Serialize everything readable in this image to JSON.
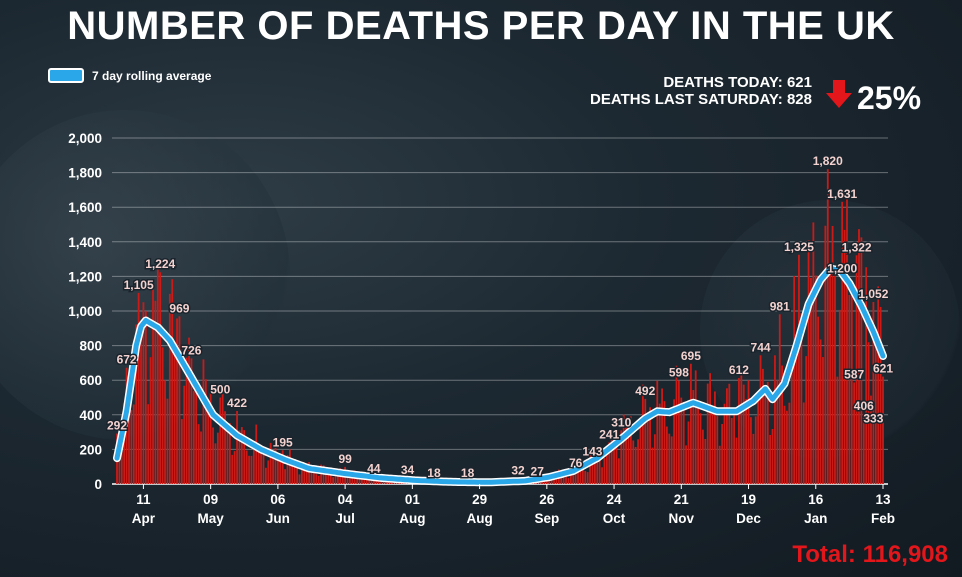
{
  "header": {
    "title": "NUMBER OF DEATHS PER DAY IN THE UK",
    "deaths_today": "DEATHS TODAY: 621",
    "deaths_last_saturday": "DEATHS LAST SATURDAY: 828",
    "change_pct": "25%",
    "change_direction": "down",
    "total": "Total: 116,908"
  },
  "legend": {
    "label": "7 day rolling average",
    "swatch_color": "#2aa7e8"
  },
  "colors": {
    "bars": "#cc1a16",
    "line": "#2aa7e8",
    "line_outline": "#ffffff",
    "total": "#e2161b",
    "arrow": "#e2161b"
  },
  "chart_data": {
    "type": "bar",
    "title": "NUMBER OF DEATHS PER DAY IN THE UK",
    "xlabel": "",
    "ylabel": "",
    "ylim": [
      0,
      2000
    ],
    "yticks": [
      0,
      200,
      400,
      600,
      800,
      1000,
      1200,
      1400,
      1600,
      1800,
      2000
    ],
    "ytick_labels": [
      "0",
      "200",
      "400",
      "600",
      "800",
      "1,000",
      "1,200",
      "1,400",
      "1,600",
      "1,800",
      "2,000"
    ],
    "grid": true,
    "legend_position": "top-left",
    "x_ticks": [
      {
        "day": 11,
        "label": "11",
        "month": "Apr"
      },
      {
        "day": 39,
        "label": "09",
        "month": "May"
      },
      {
        "day": 67,
        "label": "06",
        "month": "Jun"
      },
      {
        "day": 95,
        "label": "04",
        "month": "Jul"
      },
      {
        "day": 123,
        "label": "01",
        "month": "Aug"
      },
      {
        "day": 151,
        "label": "29",
        "month": "Aug"
      },
      {
        "day": 179,
        "label": "26",
        "month": "Sep"
      },
      {
        "day": 207,
        "label": "24",
        "month": "Oct"
      },
      {
        "day": 235,
        "label": "21",
        "month": "Nov"
      },
      {
        "day": 263,
        "label": "19",
        "month": "Dec"
      },
      {
        "day": 291,
        "label": "16",
        "month": "Jan"
      },
      {
        "day": 319,
        "label": "13",
        "month": "Feb"
      }
    ],
    "annotations": [
      {
        "day": 0,
        "value": 292,
        "label": "292"
      },
      {
        "day": 4,
        "value": 672,
        "label": "672"
      },
      {
        "day": 9,
        "value": 1105,
        "label": "1,105"
      },
      {
        "day": 18,
        "value": 1224,
        "label": "1,224"
      },
      {
        "day": 26,
        "value": 969,
        "label": "969"
      },
      {
        "day": 31,
        "value": 726,
        "label": "726"
      },
      {
        "day": 43,
        "value": 500,
        "label": "500"
      },
      {
        "day": 50,
        "value": 422,
        "label": "422"
      },
      {
        "day": 69,
        "value": 195,
        "label": "195"
      },
      {
        "day": 95,
        "value": 99,
        "label": "99"
      },
      {
        "day": 107,
        "value": 44,
        "label": "44"
      },
      {
        "day": 121,
        "value": 34,
        "label": "34"
      },
      {
        "day": 132,
        "value": 18,
        "label": "18"
      },
      {
        "day": 146,
        "value": 18,
        "label": "18"
      },
      {
        "day": 167,
        "value": 32,
        "label": "32"
      },
      {
        "day": 175,
        "value": 27,
        "label": "27"
      },
      {
        "day": 191,
        "value": 76,
        "label": "76"
      },
      {
        "day": 198,
        "value": 143,
        "label": "143"
      },
      {
        "day": 205,
        "value": 241,
        "label": "241"
      },
      {
        "day": 210,
        "value": 310,
        "label": "310"
      },
      {
        "day": 220,
        "value": 492,
        "label": "492"
      },
      {
        "day": 234,
        "value": 598,
        "label": "598"
      },
      {
        "day": 239,
        "value": 695,
        "label": "695"
      },
      {
        "day": 259,
        "value": 612,
        "label": "612"
      },
      {
        "day": 268,
        "value": 744,
        "label": "744"
      },
      {
        "day": 276,
        "value": 981,
        "label": "981"
      },
      {
        "day": 284,
        "value": 1325,
        "label": "1,325"
      },
      {
        "day": 296,
        "value": 1820,
        "label": "1,820"
      },
      {
        "day": 302,
        "value": 1631,
        "label": "1,631"
      },
      {
        "day": 302,
        "value": 1200,
        "label": "1,200"
      },
      {
        "day": 308,
        "value": 1322,
        "label": "1,322"
      },
      {
        "day": 307,
        "value": 587,
        "label": "587"
      },
      {
        "day": 311,
        "value": 406,
        "label": "406"
      },
      {
        "day": 315,
        "value": 1052,
        "label": "1,052"
      },
      {
        "day": 315,
        "value": 333,
        "label": "333"
      },
      {
        "day": 319,
        "value": 621,
        "label": "621"
      }
    ],
    "rolling_avg_keypoints": [
      {
        "day": 0,
        "value": 150
      },
      {
        "day": 4,
        "value": 420
      },
      {
        "day": 8,
        "value": 800
      },
      {
        "day": 10,
        "value": 910
      },
      {
        "day": 12,
        "value": 945
      },
      {
        "day": 17,
        "value": 905
      },
      {
        "day": 22,
        "value": 830
      },
      {
        "day": 30,
        "value": 640
      },
      {
        "day": 40,
        "value": 400
      },
      {
        "day": 50,
        "value": 280
      },
      {
        "day": 60,
        "value": 200
      },
      {
        "day": 70,
        "value": 140
      },
      {
        "day": 80,
        "value": 90
      },
      {
        "day": 95,
        "value": 60
      },
      {
        "day": 110,
        "value": 35
      },
      {
        "day": 125,
        "value": 20
      },
      {
        "day": 140,
        "value": 12
      },
      {
        "day": 155,
        "value": 10
      },
      {
        "day": 170,
        "value": 18
      },
      {
        "day": 180,
        "value": 40
      },
      {
        "day": 190,
        "value": 75
      },
      {
        "day": 200,
        "value": 150
      },
      {
        "day": 210,
        "value": 260
      },
      {
        "day": 220,
        "value": 380
      },
      {
        "day": 225,
        "value": 420
      },
      {
        "day": 230,
        "value": 415
      },
      {
        "day": 240,
        "value": 470
      },
      {
        "day": 250,
        "value": 420
      },
      {
        "day": 258,
        "value": 420
      },
      {
        "day": 265,
        "value": 480
      },
      {
        "day": 270,
        "value": 550
      },
      {
        "day": 273,
        "value": 490
      },
      {
        "day": 278,
        "value": 580
      },
      {
        "day": 283,
        "value": 800
      },
      {
        "day": 288,
        "value": 1040
      },
      {
        "day": 293,
        "value": 1180
      },
      {
        "day": 297,
        "value": 1245
      },
      {
        "day": 301,
        "value": 1235
      },
      {
        "day": 305,
        "value": 1160
      },
      {
        "day": 310,
        "value": 1030
      },
      {
        "day": 315,
        "value": 880
      },
      {
        "day": 319,
        "value": 740
      }
    ],
    "daily_deaths_total_days": 320
  }
}
